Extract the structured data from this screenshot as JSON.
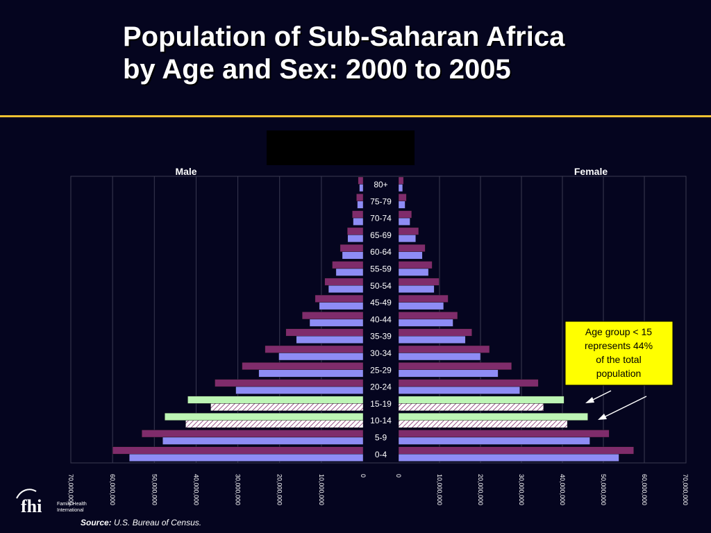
{
  "title": {
    "line1": "Population of Sub-Saharan Africa",
    "line2": "by Age and Sex: 2000 to 2005"
  },
  "source": {
    "label": "Source:",
    "text": "U.S. Bureau of Census."
  },
  "logo": {
    "mark": "fhi",
    "name_line1": "Family Health",
    "name_line2": "International"
  },
  "annotation": {
    "text": "Age group < 15 represents 44% of the total population"
  },
  "colors": {
    "background": "#05051f",
    "title_rule": "#f1c232",
    "series_2000": "#7f2c6b",
    "series_2005": "#8e8cf5",
    "highlight_2000": "#bdf5b5",
    "highlight_2005": "#ffffff",
    "annotation_fill": "#ffff00"
  },
  "chart_data": {
    "type": "bar",
    "subtype": "population-pyramid",
    "side_labels": {
      "male": "Male",
      "female": "Female"
    },
    "categories": [
      "80+",
      "75-79",
      "70-74",
      "65-69",
      "60-64",
      "55-59",
      "50-54",
      "45-49",
      "40-44",
      "35-39",
      "30-34",
      "25-29",
      "20-24",
      "15-19",
      "10-14",
      "5-9",
      "0-4"
    ],
    "highlighted_categories": [
      "15-19",
      "10-14"
    ],
    "x_range": [
      0,
      70000000
    ],
    "x_tick_labels_male": [
      "70,000,000",
      "60,000,000",
      "50,000,000",
      "40,000,000",
      "30,000,000",
      "20,000,000",
      "10,000,000",
      "0"
    ],
    "x_tick_labels_female": [
      "0",
      "10,000,000",
      "20,000,000",
      "30,000,000",
      "40,000,000",
      "50,000,000",
      "60,000,000",
      "70,000,000"
    ],
    "series": [
      {
        "side": "male",
        "year": "2000",
        "values": [
          1200000,
          1600000,
          2600000,
          3800000,
          5500000,
          7400000,
          9200000,
          11500000,
          14600000,
          18500000,
          23500000,
          29000000,
          35500000,
          42000000,
          47500000,
          53000000,
          60000000
        ]
      },
      {
        "side": "male",
        "year": "2005",
        "values": [
          900000,
          1400000,
          2400000,
          3700000,
          5000000,
          6500000,
          8300000,
          10500000,
          12800000,
          16000000,
          20200000,
          25000000,
          30500000,
          36500000,
          42500000,
          48000000,
          56000000
        ]
      },
      {
        "side": "female",
        "year": "2000",
        "values": [
          1200000,
          1900000,
          3200000,
          4900000,
          6500000,
          8200000,
          9900000,
          12100000,
          14400000,
          17900000,
          22200000,
          27600000,
          34100000,
          40400000,
          46200000,
          51400000,
          57400000
        ]
      },
      {
        "side": "female",
        "year": "2005",
        "values": [
          1000000,
          1600000,
          2800000,
          4200000,
          5800000,
          7300000,
          8700000,
          11000000,
          13300000,
          16300000,
          20000000,
          24300000,
          29600000,
          35400000,
          41200000,
          46700000,
          53800000
        ]
      }
    ]
  }
}
